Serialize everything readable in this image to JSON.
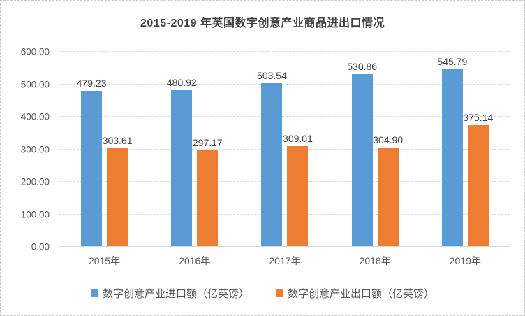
{
  "chart_data": {
    "type": "bar",
    "title": "2015-2019 年英国数字创意产业商品进出口情况",
    "categories": [
      "2015年",
      "2016年",
      "2017年",
      "2018年",
      "2019年"
    ],
    "series": [
      {
        "name": "数字创意产业进口额（亿英镑）",
        "color": "#5B9BD5",
        "values": [
          479.23,
          480.92,
          503.54,
          530.86,
          545.79
        ],
        "value_labels": [
          "479.23",
          "480.92",
          "503.54",
          "530.86",
          "545.79"
        ]
      },
      {
        "name": "数字创意产业出口额（亿英镑）",
        "color": "#ED7D31",
        "values": [
          303.61,
          297.17,
          309.01,
          304.9,
          375.14
        ],
        "value_labels": [
          "303.61",
          "297.17",
          "309.01",
          "304.90",
          "375.14"
        ]
      }
    ],
    "ylim": [
      0,
      600
    ],
    "yticks": [
      0,
      100,
      200,
      300,
      400,
      500,
      600
    ],
    "ytick_labels": [
      "0.00",
      "100.00",
      "200.00",
      "300.00",
      "400.00",
      "500.00",
      "600.00"
    ],
    "xlabel": "",
    "ylabel": "",
    "grid": true,
    "gridline_style": "dashed",
    "legend_position": "bottom",
    "data_labels": "outside-end",
    "colors": {
      "title_text": "#404040",
      "axis_text": "#595959",
      "data_label_text": "#404040",
      "gridline": "#D9D9D9",
      "axis_line": "#D9D9D9",
      "background": "#FFFFFF"
    }
  }
}
